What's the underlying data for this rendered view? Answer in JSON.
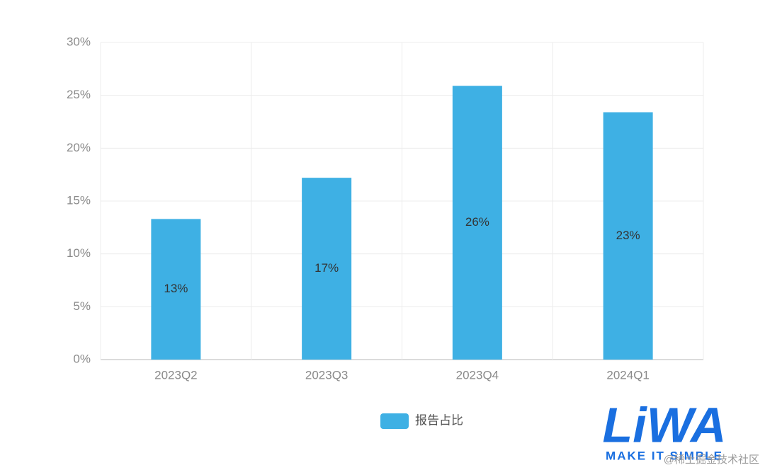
{
  "chart_data": {
    "type": "bar",
    "categories": [
      "2023Q2",
      "2023Q3",
      "2023Q4",
      "2024Q1"
    ],
    "series": [
      {
        "name": "报告占比",
        "color": "#3eb0e4",
        "values": [
          13.3,
          17.2,
          25.9,
          23.4
        ],
        "value_labels": [
          "13%",
          "17%",
          "26%",
          "23%"
        ]
      }
    ],
    "ylim": [
      0,
      30
    ],
    "yticks": [
      {
        "value": 0,
        "label": "0%"
      },
      {
        "value": 5,
        "label": "5%"
      },
      {
        "value": 10,
        "label": "10%"
      },
      {
        "value": 15,
        "label": "15%"
      },
      {
        "value": 20,
        "label": "20%"
      },
      {
        "value": 25,
        "label": "25%"
      },
      {
        "value": 30,
        "label": "30%"
      }
    ],
    "grid": true,
    "legend": "bottom",
    "logo": "LiWA",
    "logo_tagline": "MAKE IT SIMPLE",
    "credit": "@稀土掘金技术社区"
  }
}
